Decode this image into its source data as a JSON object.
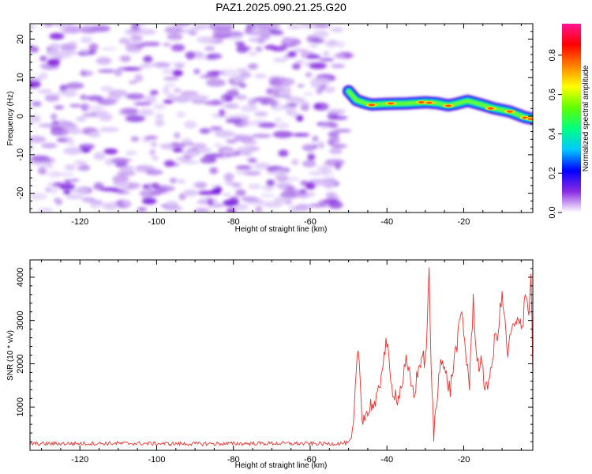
{
  "title": "PAZ1.2025.090.21.25.G20",
  "colors": {
    "noise": "#8a2be2",
    "snr_line": "#e8302f",
    "frame": "#000000"
  },
  "chart_data": [
    {
      "type": "heatmap",
      "xlabel": "Height of straight line (km)",
      "ylabel": "Frequency (Hz)",
      "xlim": [
        -133,
        -2
      ],
      "ylim": [
        -25,
        24
      ],
      "x_ticks": [
        -120,
        -100,
        -80,
        -60,
        -40,
        -20
      ],
      "y_ticks": [
        -20,
        -10,
        0,
        10,
        20
      ],
      "x_tick_labels": [
        "-120",
        "-100",
        "-80",
        "-60",
        "-40",
        "-20"
      ],
      "y_tick_labels": [
        "-20",
        "-10",
        "0",
        "10",
        "20"
      ],
      "noise_region_x": [
        -133,
        -51
      ],
      "signal_track": {
        "x": [
          -50,
          -48,
          -46,
          -44,
          -40,
          -35,
          -30,
          -27,
          -24,
          -22,
          -19,
          -16,
          -12,
          -8,
          -4,
          -2
        ],
        "y": [
          6.5,
          4.2,
          3.5,
          3.0,
          3.2,
          3.3,
          3.6,
          3.4,
          2.8,
          3.2,
          4.0,
          3.2,
          2.0,
          1.2,
          -0.3,
          -0.7
        ]
      },
      "colorbar": {
        "label": "Normalized spectral amplitude",
        "range": [
          0,
          0.96
        ],
        "ticks": [
          0.0,
          0.2,
          0.4,
          0.6,
          0.8
        ],
        "tick_labels": [
          "0.0",
          "0.2",
          "0.4",
          "0.6",
          "0.8"
        ],
        "colormap": [
          "#ffffff",
          "#8a2be2",
          "#0000ff",
          "#00c8ff",
          "#00ff80",
          "#60ff00",
          "#ffff00",
          "#ff8000",
          "#ff0000",
          "#ff1493"
        ]
      }
    },
    {
      "type": "line",
      "xlabel": "Height of straight line (km)",
      "ylabel": "SNR (10 * v/v)",
      "xlim": [
        -133,
        -2
      ],
      "ylim": [
        0,
        4400
      ],
      "x_ticks": [
        -120,
        -100,
        -80,
        -60,
        -40,
        -20
      ],
      "y_ticks": [
        1000,
        2000,
        3000,
        4000
      ],
      "x_tick_labels": [
        "-120",
        "-100",
        "-80",
        "-60",
        "-40",
        "-20"
      ],
      "y_tick_labels": [
        "1000",
        "2000",
        "3000",
        "4000"
      ],
      "series": [
        {
          "x": [
            -133,
            -110,
            -90,
            -70,
            -55,
            -50,
            -49,
            -48.5,
            -47.5,
            -46.5,
            -45,
            -44,
            -43,
            -42,
            -41,
            -40,
            -39,
            -37,
            -35,
            -33,
            -31,
            -30,
            -29,
            -28.5,
            -27.8,
            -27,
            -26,
            -25,
            -23.5,
            -22.5,
            -21.5,
            -20.5,
            -19.5,
            -18.5,
            -17.5,
            -16.5,
            -15.5,
            -14.5,
            -13,
            -12,
            -11,
            -10,
            -8.5,
            -7.5,
            -6,
            -4.5,
            -4,
            -3,
            -2.5,
            -2
          ],
          "y": [
            150,
            160,
            150,
            160,
            150,
            170,
            300,
            900,
            2450,
            800,
            850,
            1100,
            1000,
            1400,
            2150,
            2500,
            1500,
            1200,
            2000,
            1300,
            2200,
            2000,
            4050,
            1900,
            400,
            1100,
            2300,
            1800,
            1400,
            2100,
            2600,
            3200,
            2300,
            1500,
            3500,
            2000,
            2000,
            1500,
            1700,
            2500,
            2800,
            3600,
            2200,
            2800,
            2900,
            3000,
            3800,
            3100,
            4200,
            1700
          ]
        }
      ]
    }
  ]
}
